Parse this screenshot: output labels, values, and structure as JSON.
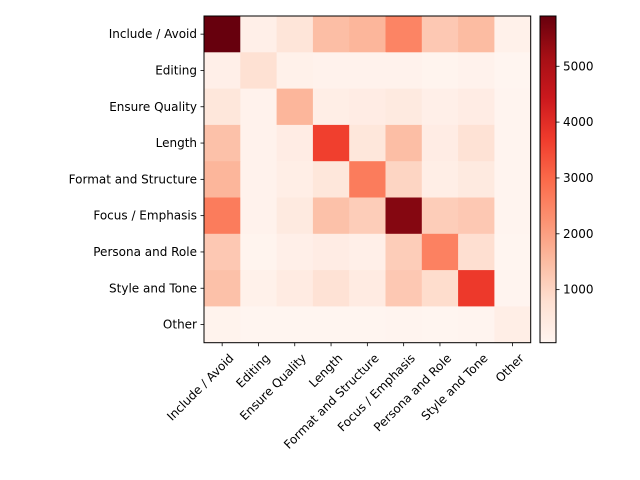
{
  "chart_data": {
    "type": "heatmap",
    "rows": [
      "Include / Avoid",
      "Editing",
      "Ensure Quality",
      "Length",
      "Format and Structure",
      "Focus / Emphasis",
      "Persona and Role",
      "Style and Tone",
      "Other"
    ],
    "cols": [
      "Include / Avoid",
      "Editing",
      "Ensure Quality",
      "Length",
      "Format and Structure",
      "Focus / Emphasis",
      "Persona and Role",
      "Style and Tone",
      "Other"
    ],
    "values": [
      [
        5900,
        250,
        600,
        1450,
        1600,
        2500,
        1250,
        1500,
        200
      ],
      [
        250,
        750,
        200,
        150,
        150,
        150,
        100,
        150,
        50
      ],
      [
        550,
        150,
        1600,
        300,
        350,
        450,
        250,
        350,
        80
      ],
      [
        1400,
        150,
        350,
        3650,
        550,
        1450,
        350,
        700,
        80
      ],
      [
        1600,
        150,
        300,
        550,
        2650,
        1000,
        300,
        450,
        80
      ],
      [
        2650,
        150,
        450,
        1400,
        1150,
        5550,
        1150,
        1250,
        80
      ],
      [
        1250,
        100,
        250,
        350,
        250,
        1150,
        2550,
        800,
        60
      ],
      [
        1400,
        200,
        400,
        700,
        400,
        1250,
        850,
        3750,
        80
      ],
      [
        120,
        40,
        50,
        60,
        60,
        70,
        60,
        80,
        300
      ]
    ],
    "colorbar": {
      "min": 50,
      "max": 5900,
      "ticks": [
        1000,
        2000,
        3000,
        4000,
        5000
      ]
    },
    "colormap": "Reds"
  }
}
